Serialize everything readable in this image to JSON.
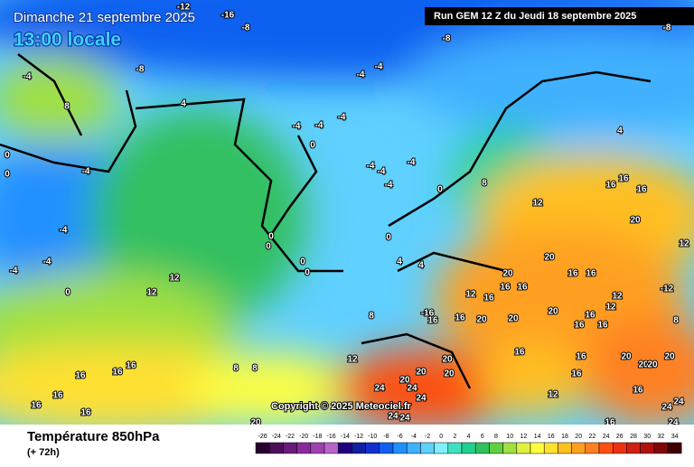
{
  "header": {
    "title": "Dimanche 21 septembre 2025",
    "time": "13:00 locale",
    "run": "Run GEM 12 Z du Jeudi 18 septembre 2025"
  },
  "footer": {
    "variable": "Température 850hPa",
    "lead": "(+ 72h)",
    "copyright": "Copyright © 2025 Meteociel.fr"
  },
  "legend": {
    "ticks": [
      -26,
      -24,
      -22,
      -20,
      -18,
      -16,
      -14,
      -12,
      -10,
      -8,
      -6,
      -4,
      -2,
      0,
      2,
      4,
      6,
      8,
      10,
      12,
      14,
      16,
      18,
      20,
      22,
      24,
      26,
      28,
      30,
      32,
      34
    ],
    "colors": [
      "#2a0030",
      "#4b0f5a",
      "#6a1a7a",
      "#8a2a9a",
      "#a040b0",
      "#b865c8",
      "#200080",
      "#1020a0",
      "#1030d0",
      "#1060f0",
      "#2090ff",
      "#40b0ff",
      "#60d0ff",
      "#80f0ff",
      "#40e0c0",
      "#20d090",
      "#30c060",
      "#60d040",
      "#a0e040",
      "#e0f040",
      "#ffff40",
      "#ffe030",
      "#ffc020",
      "#ffa020",
      "#ff8020",
      "#ff5010",
      "#f03010",
      "#d02010",
      "#b01010",
      "#800808",
      "#400000"
    ]
  },
  "map_labels": [
    -16,
    -12,
    -8,
    -8,
    -8,
    -8,
    -4,
    -4,
    -4,
    4,
    8,
    -4,
    -4,
    -4,
    0,
    4,
    -4,
    -4,
    -4,
    -4,
    -4,
    0,
    8,
    0,
    0,
    16,
    16,
    16,
    12,
    20,
    -4,
    0,
    0,
    0,
    4,
    4,
    12,
    20,
    20,
    16,
    16,
    0,
    0,
    -4,
    -4,
    0,
    12,
    12,
    12,
    16,
    16,
    16,
    -12,
    12,
    12,
    16,
    20,
    20,
    16,
    16,
    -16,
    8,
    20,
    16,
    16,
    8,
    12,
    8,
    8,
    16,
    16,
    16,
    16,
    20,
    20,
    20,
    24,
    24,
    24,
    20,
    20,
    20,
    20,
    20,
    16,
    16,
    16,
    16,
    16,
    12,
    16,
    24,
    24,
    24,
    24,
    20,
    16,
    24
  ]
}
